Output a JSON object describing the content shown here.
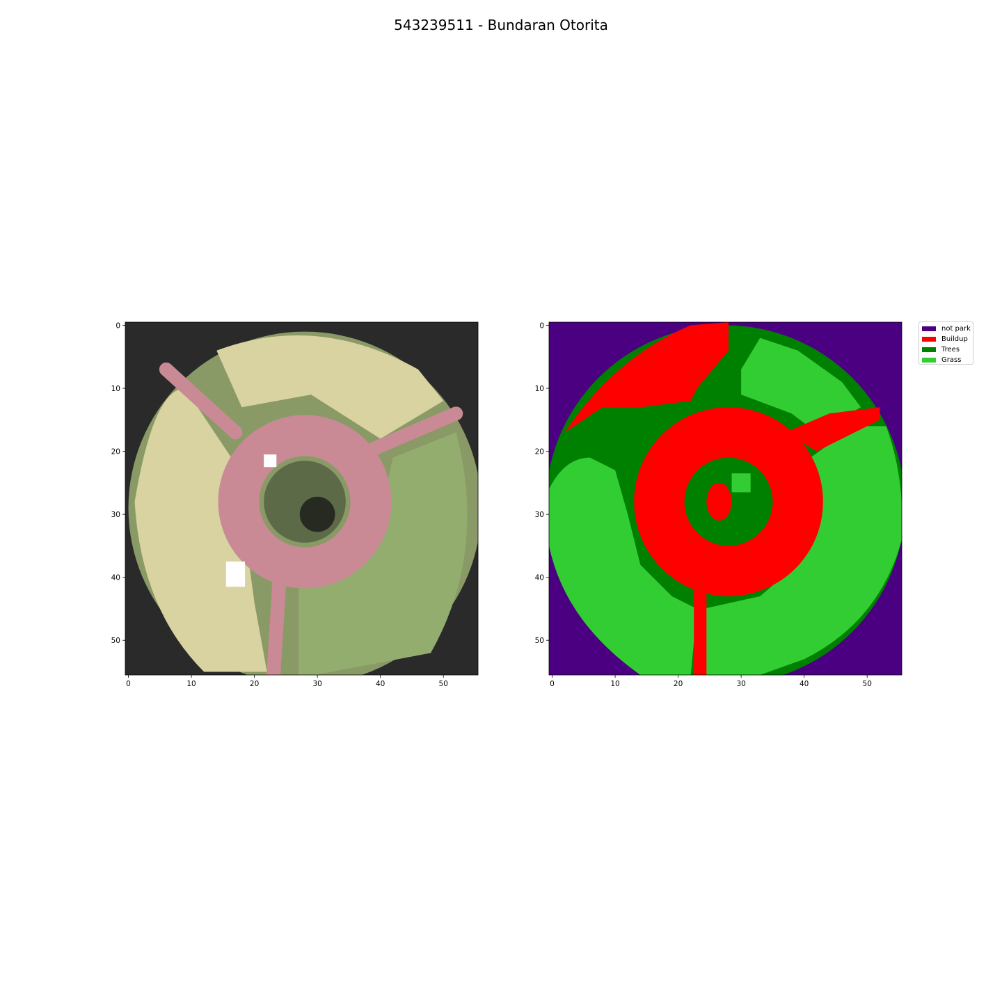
{
  "title": "543239511 - Bundaran Otorita",
  "chart_data": [
    {
      "type": "heatmap",
      "subtype": "rgb satellite image",
      "x_ticks": [
        0,
        10,
        20,
        30,
        40,
        50
      ],
      "y_ticks": [
        0,
        10,
        20,
        30,
        40,
        50
      ],
      "xlim": [
        -0.5,
        55.5
      ],
      "ylim": [
        55.5,
        -0.5
      ],
      "image_size": [
        56,
        56
      ],
      "description_colors": {
        "roundabout_road": "#c98a96",
        "grass": "#93ad6f",
        "sand_grass": "#d8d3a0",
        "dark": "#2a2a2a",
        "center_dark": "#262a20"
      }
    },
    {
      "type": "heatmap",
      "subtype": "classification map",
      "x_ticks": [
        0,
        10,
        20,
        30,
        40,
        50
      ],
      "y_ticks": [
        0,
        10,
        20,
        30,
        40,
        50
      ],
      "xlim": [
        -0.5,
        55.5
      ],
      "ylim": [
        55.5,
        -0.5
      ],
      "image_size": [
        56,
        56
      ],
      "legend": [
        {
          "label": "not park",
          "color": "#4b0082"
        },
        {
          "label": "Buildup",
          "color": "#ff0000"
        },
        {
          "label": "Trees",
          "color": "#008000"
        },
        {
          "label": "Grass",
          "color": "#32cd32"
        }
      ],
      "legend_position": "upper right outside"
    }
  ]
}
